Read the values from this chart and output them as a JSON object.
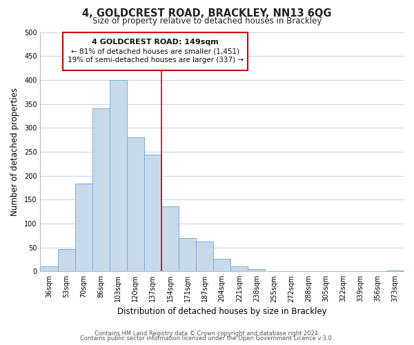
{
  "title_main": "4, GOLDCREST ROAD, BRACKLEY, NN13 6QG",
  "title_sub": "Size of property relative to detached houses in Brackley",
  "xlabel": "Distribution of detached houses by size in Brackley",
  "ylabel": "Number of detached properties",
  "bar_labels": [
    "36sqm",
    "53sqm",
    "70sqm",
    "86sqm",
    "103sqm",
    "120sqm",
    "137sqm",
    "154sqm",
    "171sqm",
    "187sqm",
    "204sqm",
    "221sqm",
    "238sqm",
    "255sqm",
    "272sqm",
    "288sqm",
    "305sqm",
    "322sqm",
    "339sqm",
    "356sqm",
    "373sqm"
  ],
  "bar_heights": [
    10,
    47,
    184,
    340,
    400,
    280,
    244,
    136,
    70,
    62,
    26,
    10,
    5,
    0,
    0,
    0,
    0,
    0,
    0,
    0,
    2
  ],
  "bar_color": "#c8d9ec",
  "bar_edge_color": "#7aafd4",
  "vline_color": "#cc0000",
  "ylim": [
    0,
    500
  ],
  "yticks": [
    0,
    50,
    100,
    150,
    200,
    250,
    300,
    350,
    400,
    450,
    500
  ],
  "annotation_title": "4 GOLDCREST ROAD: 149sqm",
  "annotation_line1": "← 81% of detached houses are smaller (1,451)",
  "annotation_line2": "19% of semi-detached houses are larger (337) →",
  "annotation_box_color": "#ffffff",
  "annotation_box_edge": "#cc0000",
  "footer_line1": "Contains HM Land Registry data © Crown copyright and database right 2024.",
  "footer_line2": "Contains public sector information licensed under the Open Government Licence v.3.0.",
  "bg_color": "#ffffff",
  "grid_color": "#c8d8e8"
}
